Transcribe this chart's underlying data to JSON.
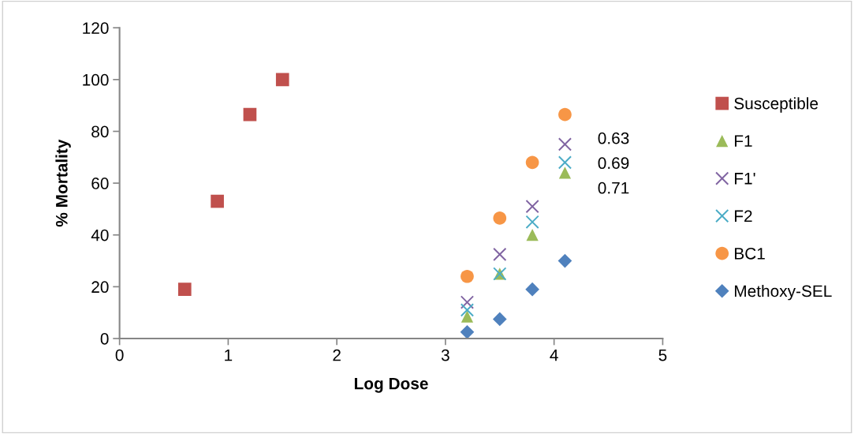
{
  "chart_data": {
    "type": "scatter",
    "xlabel": "Log Dose",
    "ylabel": "% Mortality",
    "xlim": [
      0,
      5
    ],
    "xticks": [
      0,
      1,
      2,
      3,
      4,
      5
    ],
    "ylim": [
      0,
      120
    ],
    "yticks": [
      0,
      20,
      40,
      60,
      80,
      100,
      120
    ],
    "grid": false,
    "legend": "right",
    "series": [
      {
        "name": "Susceptible",
        "color": "#c0504d",
        "marker": "square",
        "x": [
          0.6,
          0.9,
          1.2,
          1.5
        ],
        "values": [
          19,
          53,
          86.5,
          100
        ]
      },
      {
        "name": "F1",
        "color": "#9bbb59",
        "marker": "triangle",
        "x": [
          3.2,
          3.5,
          3.8,
          4.1
        ],
        "values": [
          8.5,
          25,
          40,
          64
        ]
      },
      {
        "name": "F1'",
        "color": "#8064a2",
        "marker": "cross",
        "x": [
          3.2,
          3.5,
          3.8,
          4.1
        ],
        "values": [
          14,
          32.5,
          51,
          75
        ]
      },
      {
        "name": "F2",
        "color": "#4bacc6",
        "marker": "cross",
        "x": [
          3.2,
          3.5,
          3.8,
          4.1
        ],
        "values": [
          11,
          25,
          45,
          68
        ]
      },
      {
        "name": "BC1",
        "color": "#f79646",
        "marker": "circle",
        "x": [
          3.2,
          3.5,
          3.8,
          4.1
        ],
        "values": [
          24,
          46.5,
          68,
          86.5
        ]
      },
      {
        "name": "Methoxy-SEL",
        "color": "#4f81bd",
        "marker": "diamond",
        "x": [
          3.2,
          3.5,
          3.8,
          4.1
        ],
        "values": [
          2.5,
          7.5,
          19,
          30
        ]
      }
    ],
    "annotations": [
      "0.63",
      "0.69",
      "0.71"
    ]
  }
}
